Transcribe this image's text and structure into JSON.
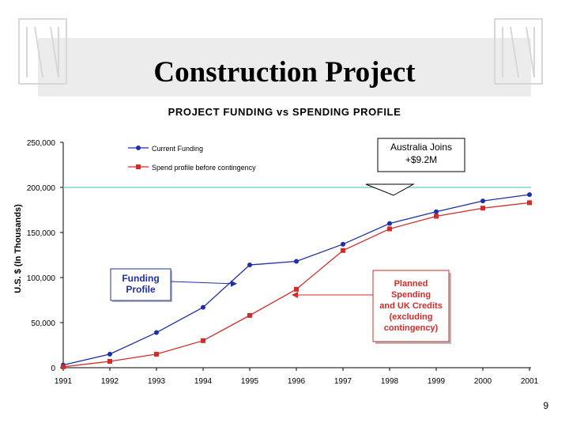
{
  "slide": {
    "title": "Construction Project",
    "page_number": "9"
  },
  "chart_data": {
    "type": "line",
    "title": "PROJECT FUNDING vs SPENDING PROFILE",
    "ylabel": "U.S. $ (In Thousands)",
    "xlabel": "",
    "categories": [
      "1991",
      "1992",
      "1993",
      "1994",
      "1995",
      "1996",
      "1997",
      "1998",
      "1999",
      "2000",
      "2001"
    ],
    "ylim": [
      0,
      250000
    ],
    "yticks": [
      0,
      50000,
      100000,
      150000,
      200000,
      250000
    ],
    "ytick_labels": [
      "0",
      "50,000",
      "100,000",
      "150,000",
      "200,000",
      "250,000"
    ],
    "reference_line": {
      "value": 200000,
      "color": "#7fd4d4"
    },
    "legend_position": "top-left",
    "series": [
      {
        "name": "Current Funding",
        "color": "#1f2fa8",
        "marker": "circle",
        "values": [
          3000,
          15000,
          39000,
          67000,
          114000,
          118000,
          137000,
          160000,
          173000,
          185000,
          192000
        ]
      },
      {
        "name": "Spend profile before contingency",
        "color": "#d42a2a",
        "marker": "square",
        "values": [
          1000,
          7000,
          15000,
          30000,
          58000,
          87000,
          130000,
          154000,
          168000,
          177000,
          183000
        ]
      }
    ],
    "annotations": [
      {
        "lines": [
          "Australia Joins",
          "+$9.2M"
        ],
        "target_x": "1998",
        "target_value": 200000,
        "style": "callout"
      },
      {
        "lines": [
          "Funding",
          "Profile"
        ],
        "target_x": "1995",
        "target_value": 95000,
        "style": "blue-box"
      },
      {
        "lines": [
          "Planned",
          "Spending",
          "and UK Credits",
          "(excluding",
          "contingency)"
        ],
        "target_x": "1996",
        "target_value": 80000,
        "style": "red-box"
      }
    ]
  }
}
